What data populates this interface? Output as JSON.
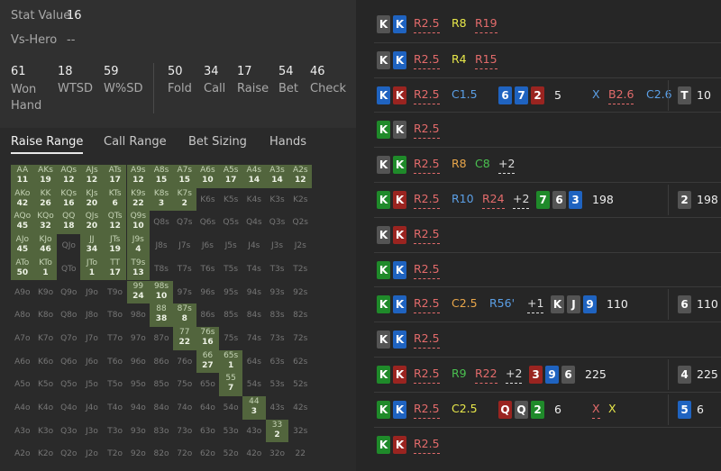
{
  "stats": {
    "stat_value_label": "Stat Value",
    "stat_value": "16",
    "vs_hero_label": "Vs-Hero",
    "vs_hero_value": "--",
    "items": [
      {
        "value": "61",
        "label": "Won Hand"
      },
      {
        "value": "18",
        "label": "WTSD"
      },
      {
        "value": "59",
        "label": "W%SD"
      },
      {
        "value": "50",
        "label": "Fold"
      },
      {
        "value": "34",
        "label": "Call"
      },
      {
        "value": "17",
        "label": "Raise"
      },
      {
        "value": "54",
        "label": "Bet"
      },
      {
        "value": "46",
        "label": "Check"
      }
    ]
  },
  "tabs": [
    "Raise Range",
    "Call Range",
    "Bet Sizing",
    "Hands"
  ],
  "active_tab": "Raise Range",
  "grid": [
    [
      [
        "AA",
        "11"
      ],
      [
        "AKs",
        "19"
      ],
      [
        "AQs",
        "12"
      ],
      [
        "AJs",
        "12"
      ],
      [
        "ATs",
        "17"
      ],
      [
        "A9s",
        "12"
      ],
      [
        "A8s",
        "15"
      ],
      [
        "A7s",
        "15"
      ],
      [
        "A6s",
        "10"
      ],
      [
        "A5s",
        "17"
      ],
      [
        "A4s",
        "14"
      ],
      [
        "A3s",
        "14"
      ],
      [
        "A2s",
        "12"
      ]
    ],
    [
      [
        "AKo",
        "42"
      ],
      [
        "KK",
        "26"
      ],
      [
        "KQs",
        "16"
      ],
      [
        "KJs",
        "20"
      ],
      [
        "KTs",
        "6"
      ],
      [
        "K9s",
        "22"
      ],
      [
        "K8s",
        "3"
      ],
      [
        "K7s",
        "2"
      ],
      [
        "K6s",
        ""
      ],
      [
        "K5s",
        ""
      ],
      [
        "K4s",
        ""
      ],
      [
        "K3s",
        ""
      ],
      [
        "K2s",
        ""
      ]
    ],
    [
      [
        "AQo",
        "45"
      ],
      [
        "KQo",
        "32"
      ],
      [
        "QQ",
        "18"
      ],
      [
        "QJs",
        "20"
      ],
      [
        "QTs",
        "12"
      ],
      [
        "Q9s",
        "10"
      ],
      [
        "Q8s",
        ""
      ],
      [
        "Q7s",
        ""
      ],
      [
        "Q6s",
        ""
      ],
      [
        "Q5s",
        ""
      ],
      [
        "Q4s",
        ""
      ],
      [
        "Q3s",
        ""
      ],
      [
        "Q2s",
        ""
      ]
    ],
    [
      [
        "AJo",
        "45"
      ],
      [
        "KJo",
        "46"
      ],
      [
        "QJo",
        ""
      ],
      [
        "JJ",
        "34"
      ],
      [
        "JTs",
        "19"
      ],
      [
        "J9s",
        "4"
      ],
      [
        "J8s",
        ""
      ],
      [
        "J7s",
        ""
      ],
      [
        "J6s",
        ""
      ],
      [
        "J5s",
        ""
      ],
      [
        "J4s",
        ""
      ],
      [
        "J3s",
        ""
      ],
      [
        "J2s",
        ""
      ]
    ],
    [
      [
        "ATo",
        "50"
      ],
      [
        "KTo",
        "1"
      ],
      [
        "QTo",
        ""
      ],
      [
        "JTo",
        "1"
      ],
      [
        "TT",
        "17"
      ],
      [
        "T9s",
        "13"
      ],
      [
        "T8s",
        ""
      ],
      [
        "T7s",
        ""
      ],
      [
        "T6s",
        ""
      ],
      [
        "T5s",
        ""
      ],
      [
        "T4s",
        ""
      ],
      [
        "T3s",
        ""
      ],
      [
        "T2s",
        ""
      ]
    ],
    [
      [
        "A9o",
        ""
      ],
      [
        "K9o",
        ""
      ],
      [
        "Q9o",
        ""
      ],
      [
        "J9o",
        ""
      ],
      [
        "T9o",
        ""
      ],
      [
        "99",
        "24"
      ],
      [
        "98s",
        "10"
      ],
      [
        "97s",
        ""
      ],
      [
        "96s",
        ""
      ],
      [
        "95s",
        ""
      ],
      [
        "94s",
        ""
      ],
      [
        "93s",
        ""
      ],
      [
        "92s",
        ""
      ]
    ],
    [
      [
        "A8o",
        ""
      ],
      [
        "K8o",
        ""
      ],
      [
        "Q8o",
        ""
      ],
      [
        "J8o",
        ""
      ],
      [
        "T8o",
        ""
      ],
      [
        "98o",
        ""
      ],
      [
        "88",
        "38"
      ],
      [
        "87s",
        "8"
      ],
      [
        "86s",
        ""
      ],
      [
        "85s",
        ""
      ],
      [
        "84s",
        ""
      ],
      [
        "83s",
        ""
      ],
      [
        "82s",
        ""
      ]
    ],
    [
      [
        "A7o",
        ""
      ],
      [
        "K7o",
        ""
      ],
      [
        "Q7o",
        ""
      ],
      [
        "J7o",
        ""
      ],
      [
        "T7o",
        ""
      ],
      [
        "97o",
        ""
      ],
      [
        "87o",
        ""
      ],
      [
        "77",
        "22"
      ],
      [
        "76s",
        "16"
      ],
      [
        "75s",
        ""
      ],
      [
        "74s",
        ""
      ],
      [
        "73s",
        ""
      ],
      [
        "72s",
        ""
      ]
    ],
    [
      [
        "A6o",
        ""
      ],
      [
        "K6o",
        ""
      ],
      [
        "Q6o",
        ""
      ],
      [
        "J6o",
        ""
      ],
      [
        "T6o",
        ""
      ],
      [
        "96o",
        ""
      ],
      [
        "86o",
        ""
      ],
      [
        "76o",
        ""
      ],
      [
        "66",
        "27"
      ],
      [
        "65s",
        "1"
      ],
      [
        "64s",
        ""
      ],
      [
        "63s",
        ""
      ],
      [
        "62s",
        ""
      ]
    ],
    [
      [
        "A5o",
        ""
      ],
      [
        "K5o",
        ""
      ],
      [
        "Q5o",
        ""
      ],
      [
        "J5o",
        ""
      ],
      [
        "T5o",
        ""
      ],
      [
        "95o",
        ""
      ],
      [
        "85o",
        ""
      ],
      [
        "75o",
        ""
      ],
      [
        "65o",
        ""
      ],
      [
        "55",
        "7"
      ],
      [
        "54s",
        ""
      ],
      [
        "53s",
        ""
      ],
      [
        "52s",
        ""
      ]
    ],
    [
      [
        "A4o",
        ""
      ],
      [
        "K4o",
        ""
      ],
      [
        "Q4o",
        ""
      ],
      [
        "J4o",
        ""
      ],
      [
        "T4o",
        ""
      ],
      [
        "94o",
        ""
      ],
      [
        "84o",
        ""
      ],
      [
        "74o",
        ""
      ],
      [
        "64o",
        ""
      ],
      [
        "54o",
        ""
      ],
      [
        "44",
        "3"
      ],
      [
        "43s",
        ""
      ],
      [
        "42s",
        ""
      ]
    ],
    [
      [
        "A3o",
        ""
      ],
      [
        "K3o",
        ""
      ],
      [
        "Q3o",
        ""
      ],
      [
        "J3o",
        ""
      ],
      [
        "T3o",
        ""
      ],
      [
        "93o",
        ""
      ],
      [
        "83o",
        ""
      ],
      [
        "73o",
        ""
      ],
      [
        "63o",
        ""
      ],
      [
        "53o",
        ""
      ],
      [
        "43o",
        ""
      ],
      [
        "33",
        "2"
      ],
      [
        "32s",
        ""
      ]
    ],
    [
      [
        "A2o",
        ""
      ],
      [
        "K2o",
        ""
      ],
      [
        "Q2o",
        ""
      ],
      [
        "J2o",
        ""
      ],
      [
        "T2o",
        ""
      ],
      [
        "92o",
        ""
      ],
      [
        "82o",
        ""
      ],
      [
        "72o",
        ""
      ],
      [
        "62o",
        ""
      ],
      [
        "52o",
        ""
      ],
      [
        "42o",
        ""
      ],
      [
        "32o",
        ""
      ],
      [
        "22",
        ""
      ]
    ]
  ],
  "grid_on": [
    [
      1,
      1,
      1,
      1,
      1,
      1,
      1,
      1,
      1,
      1,
      1,
      1,
      1
    ],
    [
      1,
      1,
      1,
      1,
      1,
      1,
      1,
      1,
      0,
      0,
      0,
      0,
      0
    ],
    [
      1,
      1,
      1,
      1,
      1,
      1,
      0,
      0,
      0,
      0,
      0,
      0,
      0
    ],
    [
      1,
      1,
      0,
      1,
      1,
      1,
      0,
      0,
      0,
      0,
      0,
      0,
      0
    ],
    [
      1,
      1,
      0,
      1,
      1,
      1,
      0,
      0,
      0,
      0,
      0,
      0,
      0
    ],
    [
      0,
      0,
      0,
      0,
      0,
      1,
      1,
      0,
      0,
      0,
      0,
      0,
      0
    ],
    [
      0,
      0,
      0,
      0,
      0,
      0,
      1,
      1,
      0,
      0,
      0,
      0,
      0
    ],
    [
      0,
      0,
      0,
      0,
      0,
      0,
      0,
      1,
      1,
      0,
      0,
      0,
      0
    ],
    [
      0,
      0,
      0,
      0,
      0,
      0,
      0,
      0,
      1,
      1,
      0,
      0,
      0
    ],
    [
      0,
      0,
      0,
      0,
      0,
      0,
      0,
      0,
      0,
      1,
      0,
      0,
      0
    ],
    [
      0,
      0,
      0,
      0,
      0,
      0,
      0,
      0,
      0,
      0,
      1,
      0,
      0
    ],
    [
      0,
      0,
      0,
      0,
      0,
      0,
      0,
      0,
      0,
      0,
      0,
      1,
      0
    ],
    [
      0,
      0,
      0,
      0,
      0,
      0,
      0,
      0,
      0,
      0,
      0,
      0,
      0
    ]
  ],
  "hands": [
    {
      "cards": [
        [
          "K",
          "gray"
        ],
        [
          "K",
          "blue"
        ]
      ],
      "actions": [
        [
          "R2.5",
          "ured",
          1
        ],
        [
          "R8",
          "uy",
          0
        ],
        [
          "R19",
          "ured",
          1
        ]
      ],
      "board": [],
      "pot": "",
      "river": null
    },
    {
      "cards": [
        [
          "K",
          "gray"
        ],
        [
          "K",
          "blue"
        ]
      ],
      "actions": [
        [
          "R2.5",
          "ured",
          1
        ],
        [
          "R4",
          "uy",
          0
        ],
        [
          "R15",
          "ured",
          1
        ]
      ],
      "board": [],
      "pot": "",
      "river": null
    },
    {
      "cards": [
        [
          "K",
          "blue"
        ],
        [
          "K",
          "red"
        ]
      ],
      "actions": [
        [
          "R2.5",
          "ured",
          1
        ],
        [
          "C1.5",
          "ub",
          0
        ]
      ],
      "board": [
        [
          "6",
          "blue"
        ],
        [
          "7",
          "blue"
        ],
        [
          "2",
          "red"
        ]
      ],
      "pot": "5",
      "flop_actions": [
        [
          "X",
          "ub",
          0
        ],
        [
          "B2.6",
          "ured",
          1
        ],
        [
          "C2.6",
          "ub",
          0
        ]
      ],
      "river": [
        "T",
        "gray",
        "10"
      ]
    },
    {
      "cards": [
        [
          "K",
          "green"
        ],
        [
          "K",
          "gray"
        ]
      ],
      "actions": [
        [
          "R2.5",
          "ured",
          1
        ]
      ],
      "board": [],
      "pot": "",
      "river": null
    },
    {
      "cards": [
        [
          "K",
          "gray"
        ],
        [
          "K",
          "green"
        ]
      ],
      "actions": [
        [
          "R2.5",
          "ured",
          1
        ],
        [
          "R8",
          "uo",
          0
        ],
        [
          "C8",
          "ug",
          0
        ],
        [
          "+2",
          "uw",
          1
        ]
      ],
      "board": [],
      "pot": "",
      "river": null
    },
    {
      "cards": [
        [
          "K",
          "green"
        ],
        [
          "K",
          "red"
        ]
      ],
      "actions": [
        [
          "R2.5",
          "ured",
          1
        ],
        [
          "R10",
          "ub",
          0
        ],
        [
          "R24",
          "ured",
          1
        ],
        [
          "+2",
          "uw",
          1
        ]
      ],
      "board": [
        [
          "7",
          "green"
        ],
        [
          "6",
          "gray"
        ],
        [
          "3",
          "blue"
        ]
      ],
      "pot": "198",
      "river": [
        "2",
        "gray",
        "198"
      ]
    },
    {
      "cards": [
        [
          "K",
          "gray"
        ],
        [
          "K",
          "red"
        ]
      ],
      "actions": [
        [
          "R2.5",
          "ured",
          1
        ]
      ],
      "board": [],
      "pot": "",
      "river": null
    },
    {
      "cards": [
        [
          "K",
          "green"
        ],
        [
          "K",
          "blue"
        ]
      ],
      "actions": [
        [
          "R2.5",
          "ured",
          1
        ]
      ],
      "board": [],
      "pot": "",
      "river": null
    },
    {
      "cards": [
        [
          "K",
          "green"
        ],
        [
          "K",
          "blue"
        ]
      ],
      "actions": [
        [
          "R2.5",
          "ured",
          1
        ],
        [
          "C2.5",
          "uo",
          0
        ],
        [
          "R56'",
          "ub",
          0
        ],
        [
          "+1",
          "uw",
          1
        ]
      ],
      "board": [
        [
          "K",
          "gray"
        ],
        [
          "J",
          "gray"
        ],
        [
          "9",
          "blue"
        ]
      ],
      "pot": "110",
      "river": [
        "6",
        "gray",
        "110"
      ]
    },
    {
      "cards": [
        [
          "K",
          "gray"
        ],
        [
          "K",
          "blue"
        ]
      ],
      "actions": [
        [
          "R2.5",
          "ured",
          1
        ]
      ],
      "board": [],
      "pot": "",
      "river": null
    },
    {
      "cards": [
        [
          "K",
          "green"
        ],
        [
          "K",
          "red"
        ]
      ],
      "actions": [
        [
          "R2.5",
          "ured",
          1
        ],
        [
          "R9",
          "ug",
          0
        ],
        [
          "R22",
          "ured",
          1
        ],
        [
          "+2",
          "uw",
          1
        ]
      ],
      "board": [
        [
          "3",
          "red"
        ],
        [
          "9",
          "blue"
        ],
        [
          "6",
          "gray"
        ]
      ],
      "pot": "225",
      "river": [
        "4",
        "gray",
        "225"
      ]
    },
    {
      "cards": [
        [
          "K",
          "green"
        ],
        [
          "K",
          "blue"
        ]
      ],
      "actions": [
        [
          "R2.5",
          "ured",
          1
        ],
        [
          "C2.5",
          "uy",
          0
        ]
      ],
      "board": [
        [
          "Q",
          "red"
        ],
        [
          "Q",
          "gray"
        ],
        [
          "2",
          "green"
        ]
      ],
      "pot": "6",
      "flop_actions": [
        [
          "X",
          "ured",
          1
        ],
        [
          "X",
          "uy",
          0
        ]
      ],
      "river": [
        "5",
        "blue",
        "6"
      ]
    },
    {
      "cards": [
        [
          "K",
          "green"
        ],
        [
          "K",
          "red"
        ]
      ],
      "actions": [
        [
          "R2.5",
          "ured",
          1
        ]
      ],
      "board": [],
      "pot": "",
      "river": null
    }
  ]
}
